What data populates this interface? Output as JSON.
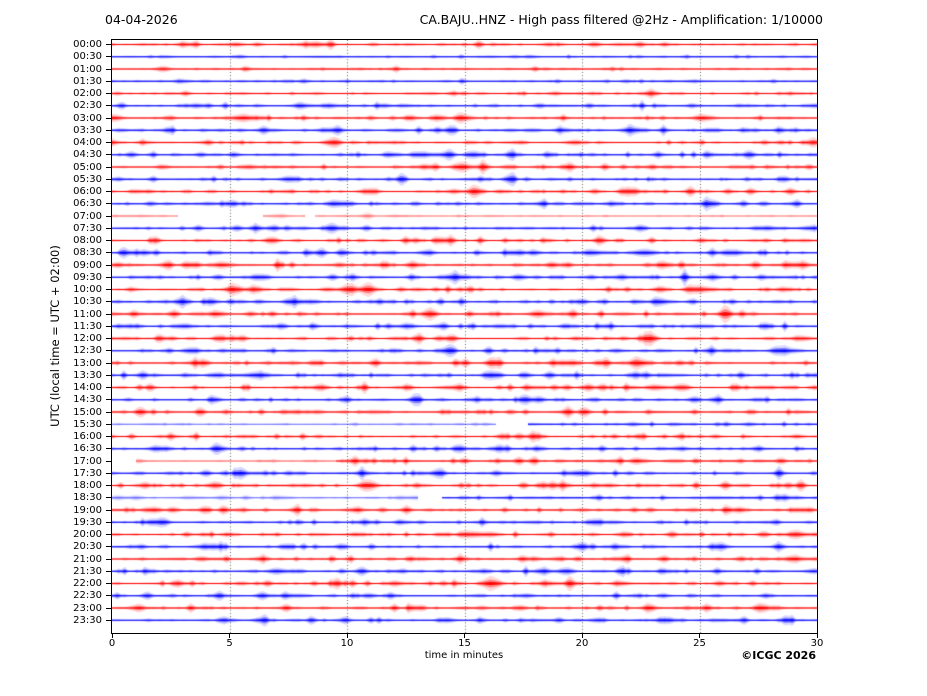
{
  "header": {
    "date": "04-04-2026",
    "title": "CA.BAJU..HNZ - High pass filtered @2Hz - Amplification: 1/10000"
  },
  "axes": {
    "y_label": "UTC (local time = UTC + 02:00)",
    "x_label": "time in minutes",
    "x_ticks": [
      0,
      5,
      10,
      15,
      20,
      25,
      30
    ],
    "x_range": [
      0,
      30
    ],
    "grid": "vertical-dotted"
  },
  "footer": {
    "copyright": "©ICGC 2026"
  },
  "colors": {
    "trace_red": "#ff0000",
    "trace_blue": "#0000ff",
    "grid": "#666666",
    "axis": "#000000",
    "background": "#ffffff"
  },
  "chart_data": {
    "type": "line",
    "subtype": "helicorder-seismogram",
    "title": "CA.BAJU..HNZ - High pass filtered @2Hz - Amplification: 1/10000",
    "xlabel": "time in minutes",
    "ylabel": "UTC (local time = UTC + 02:00)",
    "xlim": [
      0,
      30
    ],
    "minutes_per_row": 30,
    "legend": "none",
    "noise_seed": 20260404,
    "rows": [
      {
        "label": "00:00",
        "color": "red",
        "activity": 0.3
      },
      {
        "label": "00:30",
        "color": "blue",
        "activity": 0.25
      },
      {
        "label": "01:00",
        "color": "red",
        "activity": 0.3
      },
      {
        "label": "01:30",
        "color": "blue",
        "activity": 0.3
      },
      {
        "label": "02:00",
        "color": "red",
        "activity": 0.35
      },
      {
        "label": "02:30",
        "color": "blue",
        "activity": 0.55
      },
      {
        "label": "03:00",
        "color": "red",
        "activity": 0.5
      },
      {
        "label": "03:30",
        "color": "blue",
        "activity": 0.6
      },
      {
        "label": "04:00",
        "color": "red",
        "activity": 0.55
      },
      {
        "label": "04:30",
        "color": "blue",
        "activity": 0.65
      },
      {
        "label": "05:00",
        "color": "red",
        "activity": 0.6
      },
      {
        "label": "05:30",
        "color": "blue",
        "activity": 0.6
      },
      {
        "label": "06:00",
        "color": "red",
        "activity": 0.65
      },
      {
        "label": "06:30",
        "color": "blue",
        "activity": 0.6
      },
      {
        "label": "07:00",
        "color": "red",
        "activity": 0.5
      },
      {
        "label": "07:30",
        "color": "blue",
        "activity": 0.6
      },
      {
        "label": "08:00",
        "color": "red",
        "activity": 0.65
      },
      {
        "label": "08:30",
        "color": "blue",
        "activity": 0.7
      },
      {
        "label": "09:00",
        "color": "red",
        "activity": 0.7
      },
      {
        "label": "09:30",
        "color": "blue",
        "activity": 0.7
      },
      {
        "label": "10:00",
        "color": "red",
        "activity": 0.7
      },
      {
        "label": "10:30",
        "color": "blue",
        "activity": 0.75
      },
      {
        "label": "11:00",
        "color": "red",
        "activity": 0.75
      },
      {
        "label": "11:30",
        "color": "blue",
        "activity": 0.75
      },
      {
        "label": "12:00",
        "color": "red",
        "activity": 0.65
      },
      {
        "label": "12:30",
        "color": "blue",
        "activity": 0.7
      },
      {
        "label": "13:00",
        "color": "red",
        "activity": 0.75
      },
      {
        "label": "13:30",
        "color": "blue",
        "activity": 0.7
      },
      {
        "label": "14:00",
        "color": "red",
        "activity": 0.75
      },
      {
        "label": "14:30",
        "color": "blue",
        "activity": 0.65
      },
      {
        "label": "15:00",
        "color": "red",
        "activity": 0.65
      },
      {
        "label": "15:30",
        "color": "blue",
        "activity": 0.55
      },
      {
        "label": "16:00",
        "color": "red",
        "activity": 0.6
      },
      {
        "label": "16:30",
        "color": "blue",
        "activity": 0.65
      },
      {
        "label": "17:00",
        "color": "red",
        "activity": 0.6
      },
      {
        "label": "17:30",
        "color": "blue",
        "activity": 0.6
      },
      {
        "label": "18:00",
        "color": "red",
        "activity": 0.7
      },
      {
        "label": "18:30",
        "color": "blue",
        "activity": 0.6
      },
      {
        "label": "19:00",
        "color": "red",
        "activity": 0.7
      },
      {
        "label": "19:30",
        "color": "blue",
        "activity": 0.6
      },
      {
        "label": "20:00",
        "color": "red",
        "activity": 0.6
      },
      {
        "label": "20:30",
        "color": "blue",
        "activity": 0.65
      },
      {
        "label": "21:00",
        "color": "red",
        "activity": 0.6
      },
      {
        "label": "21:30",
        "color": "blue",
        "activity": 0.65
      },
      {
        "label": "22:00",
        "color": "red",
        "activity": 0.6
      },
      {
        "label": "22:30",
        "color": "blue",
        "activity": 0.55
      },
      {
        "label": "23:00",
        "color": "red",
        "activity": 0.6
      },
      {
        "label": "23:30",
        "color": "blue",
        "activity": 0.55
      }
    ],
    "events": [
      {
        "row": 0,
        "minute": 8.6,
        "amp": 1.3,
        "sigma": 0.6
      },
      {
        "row": 0,
        "minute": 9.3,
        "amp": 2.0,
        "sigma": 0.15
      },
      {
        "row": 0,
        "minute": 15.6,
        "amp": 1.6,
        "sigma": 0.2
      },
      {
        "row": 5,
        "minute": 20.3,
        "amp": 1.3,
        "sigma": 0.2
      },
      {
        "row": 6,
        "minute": 2.5,
        "amp": 1.2,
        "sigma": 0.2
      },
      {
        "row": 6,
        "minute": 14.8,
        "amp": 1.2,
        "sigma": 0.2
      },
      {
        "row": 7,
        "minute": 9.6,
        "amp": 2.0,
        "sigma": 0.2
      },
      {
        "row": 8,
        "minute": 4.1,
        "amp": 1.3,
        "sigma": 0.2
      },
      {
        "row": 9,
        "minute": 0.8,
        "amp": 1.5,
        "sigma": 0.25
      },
      {
        "row": 9,
        "minute": 25.3,
        "amp": 1.3,
        "sigma": 0.2
      },
      {
        "row": 9,
        "minute": 27.1,
        "amp": 1.9,
        "sigma": 0.25
      },
      {
        "row": 10,
        "minute": 15.8,
        "amp": 2.2,
        "sigma": 0.2
      },
      {
        "row": 10,
        "minute": 23.0,
        "amp": 1.3,
        "sigma": 0.2
      },
      {
        "row": 11,
        "minute": 12.3,
        "amp": 2.2,
        "sigma": 0.2
      },
      {
        "row": 12,
        "minute": 21.9,
        "amp": 1.5,
        "sigma": 0.25
      },
      {
        "row": 12,
        "minute": 26.2,
        "amp": 1.4,
        "sigma": 0.2
      },
      {
        "row": 13,
        "minute": 5.2,
        "amp": 1.2,
        "sigma": 0.2
      },
      {
        "row": 15,
        "minute": 5.3,
        "amp": 1.5,
        "sigma": 0.25
      },
      {
        "row": 16,
        "minute": 6.9,
        "amp": 1.4,
        "sigma": 0.2
      },
      {
        "row": 17,
        "minute": 8.9,
        "amp": 1.8,
        "sigma": 0.25
      },
      {
        "row": 17,
        "minute": 25.5,
        "amp": 1.5,
        "sigma": 0.2
      },
      {
        "row": 18,
        "minute": 3.1,
        "amp": 1.4,
        "sigma": 0.2
      },
      {
        "row": 18,
        "minute": 19.4,
        "amp": 1.5,
        "sigma": 0.2
      },
      {
        "row": 18,
        "minute": 23.4,
        "amp": 1.4,
        "sigma": 0.2
      },
      {
        "row": 18,
        "minute": 27.4,
        "amp": 1.7,
        "sigma": 0.2
      },
      {
        "row": 20,
        "minute": 24.5,
        "amp": 1.3,
        "sigma": 0.2
      },
      {
        "row": 21,
        "minute": 4.2,
        "amp": 1.4,
        "sigma": 0.25
      },
      {
        "row": 22,
        "minute": 6.8,
        "amp": 1.5,
        "sigma": 0.2
      },
      {
        "row": 22,
        "minute": 19.6,
        "amp": 1.9,
        "sigma": 0.2
      },
      {
        "row": 23,
        "minute": 14.1,
        "amp": 1.9,
        "sigma": 0.2
      },
      {
        "row": 23,
        "minute": 27.8,
        "amp": 1.7,
        "sigma": 0.2
      },
      {
        "row": 24,
        "minute": 2.0,
        "amp": 1.2,
        "sigma": 0.2
      },
      {
        "row": 25,
        "minute": 14.3,
        "amp": 1.8,
        "sigma": 0.2
      },
      {
        "row": 26,
        "minute": 15.0,
        "amp": 1.4,
        "sigma": 0.2
      },
      {
        "row": 26,
        "minute": 16.1,
        "amp": 1.7,
        "sigma": 0.2
      },
      {
        "row": 27,
        "minute": 16.4,
        "amp": 1.4,
        "sigma": 0.2
      },
      {
        "row": 27,
        "minute": 18.6,
        "amp": 1.3,
        "sigma": 0.2
      },
      {
        "row": 28,
        "minute": 1.6,
        "amp": 1.9,
        "sigma": 0.2
      },
      {
        "row": 28,
        "minute": 18.8,
        "amp": 1.4,
        "sigma": 0.2
      },
      {
        "row": 29,
        "minute": 12.9,
        "amp": 1.3,
        "sigma": 0.2
      },
      {
        "row": 30,
        "minute": 1.2,
        "amp": 2.0,
        "sigma": 0.2
      },
      {
        "row": 30,
        "minute": 19.4,
        "amp": 1.5,
        "sigma": 0.2
      },
      {
        "row": 32,
        "minute": 17.3,
        "amp": 1.3,
        "sigma": 0.2
      },
      {
        "row": 33,
        "minute": 13.8,
        "amp": 1.5,
        "sigma": 0.15
      },
      {
        "row": 34,
        "minute": 17.3,
        "amp": 2.0,
        "sigma": 0.2
      },
      {
        "row": 34,
        "minute": 17.9,
        "amp": 1.7,
        "sigma": 0.2
      },
      {
        "row": 34,
        "minute": 28.5,
        "amp": 1.4,
        "sigma": 0.2
      },
      {
        "row": 35,
        "minute": 5.4,
        "amp": 1.3,
        "sigma": 0.2
      },
      {
        "row": 36,
        "minute": 1.4,
        "amp": 1.6,
        "sigma": 0.25
      },
      {
        "row": 38,
        "minute": 3.9,
        "amp": 1.3,
        "sigma": 0.2
      },
      {
        "row": 38,
        "minute": 12.5,
        "amp": 1.5,
        "sigma": 0.25
      },
      {
        "row": 39,
        "minute": 20.6,
        "amp": 1.5,
        "sigma": 0.2
      },
      {
        "row": 40,
        "minute": 23.8,
        "amp": 1.6,
        "sigma": 0.2
      },
      {
        "row": 41,
        "minute": 7.5,
        "amp": 1.4,
        "sigma": 0.25
      },
      {
        "row": 41,
        "minute": 20.0,
        "amp": 1.7,
        "sigma": 0.2
      },
      {
        "row": 42,
        "minute": 23.5,
        "amp": 1.4,
        "sigma": 0.2
      },
      {
        "row": 43,
        "minute": 7.0,
        "amp": 1.5,
        "sigma": 0.4
      },
      {
        "row": 43,
        "minute": 21.6,
        "amp": 1.9,
        "sigma": 0.2
      },
      {
        "row": 44,
        "minute": 6.6,
        "amp": 1.4,
        "sigma": 0.2
      },
      {
        "row": 44,
        "minute": 19.5,
        "amp": 2.0,
        "sigma": 0.2
      },
      {
        "row": 45,
        "minute": 4.5,
        "amp": 1.3,
        "sigma": 0.2
      },
      {
        "row": 46,
        "minute": 7.4,
        "amp": 1.7,
        "sigma": 0.2
      },
      {
        "row": 46,
        "minute": 22.8,
        "amp": 1.5,
        "sigma": 0.3
      },
      {
        "row": 47,
        "minute": 8.5,
        "amp": 1.4,
        "sigma": 0.2
      },
      {
        "row": 47,
        "minute": 19.0,
        "amp": 1.2,
        "sigma": 0.2
      }
    ],
    "gaps": [
      {
        "row": 14,
        "from": 2.8,
        "to": 6.4
      },
      {
        "row": 14,
        "from": 8.2,
        "to": 8.6
      },
      {
        "row": 31,
        "from": 16.3,
        "to": 17.7
      },
      {
        "row": 34,
        "from": 0,
        "to": 1.0
      },
      {
        "row": 37,
        "from": 13.0,
        "to": 14.0
      }
    ],
    "faded": [
      {
        "row": 14,
        "from": 0,
        "to": 30,
        "alpha": 0.45
      },
      {
        "row": 31,
        "from": 0,
        "to": 16.3,
        "alpha": 0.5
      },
      {
        "row": 34,
        "from": 1.0,
        "to": 9.5,
        "alpha": 0.55
      },
      {
        "row": 37,
        "from": 0,
        "to": 13.0,
        "alpha": 0.5
      }
    ]
  }
}
